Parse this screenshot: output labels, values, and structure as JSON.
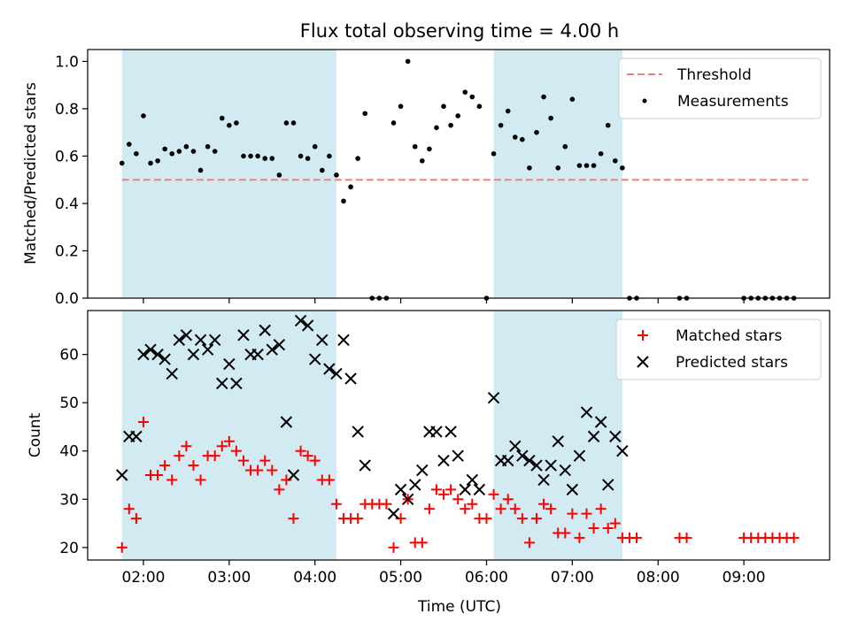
{
  "chart_data": [
    {
      "type": "scatter",
      "title": "Flux total observing time = 4.00 h",
      "xlabel": "",
      "ylabel": "Matched/Predicted stars",
      "xlim": [
        "01:21",
        "10:00"
      ],
      "ylim": [
        0,
        1.05
      ],
      "yticks": [
        0.0,
        0.2,
        0.4,
        0.6,
        0.8,
        1.0
      ],
      "ytick_labels": [
        "0.0",
        "0.2",
        "0.4",
        "0.6",
        "0.8",
        "1.0"
      ],
      "grid": false,
      "legend_position": "top-right",
      "highlight_bands": [
        [
          "01:45",
          "04:15"
        ],
        [
          "06:05",
          "07:35"
        ]
      ],
      "band_color": "#add8e6",
      "threshold": {
        "name": "Threshold",
        "y": 0.5,
        "x_range": [
          "01:45",
          "09:45"
        ],
        "color": "#f08080",
        "style": "dashed"
      },
      "series": [
        {
          "name": "Measurements",
          "color": "#000000",
          "marker": "dot",
          "x": [
            "01:45",
            "01:50",
            "01:55",
            "02:00",
            "02:05",
            "02:10",
            "02:15",
            "02:20",
            "02:25",
            "02:30",
            "02:35",
            "02:40",
            "02:45",
            "02:50",
            "02:55",
            "03:00",
            "03:05",
            "03:10",
            "03:15",
            "03:20",
            "03:25",
            "03:30",
            "03:35",
            "03:40",
            "03:45",
            "03:50",
            "03:55",
            "04:00",
            "04:05",
            "04:10",
            "04:15",
            "04:20",
            "04:25",
            "04:30",
            "04:35",
            "04:40",
            "04:45",
            "04:50",
            "04:55",
            "05:00",
            "05:05",
            "05:10",
            "05:15",
            "05:20",
            "05:25",
            "05:30",
            "05:35",
            "05:40",
            "05:45",
            "05:50",
            "05:55",
            "06:00",
            "06:05",
            "06:10",
            "06:15",
            "06:20",
            "06:25",
            "06:30",
            "06:35",
            "06:40",
            "06:45",
            "06:50",
            "06:55",
            "07:00",
            "07:05",
            "07:10",
            "07:15",
            "07:20",
            "07:25",
            "07:30",
            "07:35",
            "07:40",
            "07:45",
            "08:15",
            "08:20",
            "09:00",
            "09:05",
            "09:10",
            "09:15",
            "09:20",
            "09:25",
            "09:30",
            "09:35"
          ],
          "y": [
            0.57,
            0.65,
            0.61,
            0.77,
            0.57,
            0.58,
            0.63,
            0.61,
            0.62,
            0.64,
            0.62,
            0.54,
            0.64,
            0.62,
            0.76,
            0.73,
            0.74,
            0.6,
            0.6,
            0.6,
            0.59,
            0.59,
            0.52,
            0.74,
            0.74,
            0.6,
            0.59,
            0.64,
            0.54,
            0.6,
            0.52,
            0.41,
            0.47,
            0.59,
            0.78,
            0.0,
            0.0,
            0.0,
            0.74,
            0.81,
            1.0,
            0.64,
            0.58,
            0.63,
            0.72,
            0.81,
            0.73,
            0.77,
            0.87,
            0.85,
            0.81,
            0.0,
            0.61,
            0.73,
            0.79,
            0.68,
            0.67,
            0.55,
            0.7,
            0.85,
            0.76,
            0.55,
            0.64,
            0.84,
            0.56,
            0.56,
            0.56,
            0.61,
            0.73,
            0.58,
            0.55,
            0.0,
            0.0,
            0.0,
            0.0,
            0.0,
            0.0,
            0.0,
            0.0,
            0.0,
            0.0,
            0.0,
            0.0
          ]
        }
      ]
    },
    {
      "type": "scatter",
      "title": "",
      "xlabel": "Time (UTC)",
      "ylabel": "Count",
      "xlim": [
        "01:21",
        "10:00"
      ],
      "ylim": [
        17.4,
        69.1
      ],
      "xticks": [
        "02:00",
        "03:00",
        "04:00",
        "05:00",
        "06:00",
        "07:00",
        "08:00",
        "09:00"
      ],
      "yticks": [
        20,
        30,
        40,
        50,
        60
      ],
      "ytick_labels": [
        "20",
        "30",
        "40",
        "50",
        "60"
      ],
      "grid": false,
      "legend_position": "top-right",
      "highlight_bands": [
        [
          "01:45",
          "04:15"
        ],
        [
          "06:05",
          "07:35"
        ]
      ],
      "band_color": "#add8e6",
      "series": [
        {
          "name": "Matched stars",
          "color": "#ff0000",
          "marker": "plus",
          "x": [
            "01:45",
            "01:50",
            "01:55",
            "02:00",
            "02:05",
            "02:10",
            "02:15",
            "02:20",
            "02:25",
            "02:30",
            "02:35",
            "02:40",
            "02:45",
            "02:50",
            "02:55",
            "03:00",
            "03:05",
            "03:10",
            "03:15",
            "03:20",
            "03:25",
            "03:30",
            "03:35",
            "03:40",
            "03:45",
            "03:50",
            "03:55",
            "04:00",
            "04:05",
            "04:10",
            "04:15",
            "04:20",
            "04:25",
            "04:30",
            "04:35",
            "04:40",
            "04:45",
            "04:50",
            "04:55",
            "05:00",
            "05:05",
            "05:10",
            "05:15",
            "05:20",
            "05:25",
            "05:30",
            "05:35",
            "05:40",
            "05:45",
            "05:50",
            "05:55",
            "06:00",
            "06:05",
            "06:10",
            "06:15",
            "06:20",
            "06:25",
            "06:30",
            "06:35",
            "06:40",
            "06:45",
            "06:50",
            "06:55",
            "07:00",
            "07:05",
            "07:10",
            "07:15",
            "07:20",
            "07:25",
            "07:30",
            "07:35",
            "07:40",
            "07:45",
            "08:15",
            "08:20",
            "09:00",
            "09:05",
            "09:10",
            "09:15",
            "09:20",
            "09:25",
            "09:30",
            "09:35"
          ],
          "y": [
            20,
            28,
            26,
            46,
            35,
            35,
            37,
            34,
            39,
            41,
            37,
            34,
            39,
            39,
            41,
            42,
            40,
            38,
            36,
            36,
            38,
            36,
            32,
            34,
            26,
            40,
            39,
            38,
            34,
            34,
            29,
            26,
            26,
            26,
            29,
            29,
            29,
            29,
            20,
            26,
            30,
            21,
            21,
            28,
            32,
            31,
            32,
            30,
            28,
            29,
            26,
            26,
            31,
            28,
            30,
            28,
            26,
            21,
            26,
            29,
            28,
            23,
            23,
            27,
            22,
            27,
            24,
            28,
            24,
            25,
            22,
            22,
            22,
            22,
            22,
            22,
            22,
            22,
            22,
            22,
            22,
            22,
            22
          ]
        },
        {
          "name": "Predicted stars",
          "color": "#000000",
          "marker": "x",
          "x": [
            "01:45",
            "01:50",
            "01:55",
            "02:00",
            "02:05",
            "02:10",
            "02:15",
            "02:20",
            "02:25",
            "02:30",
            "02:35",
            "02:40",
            "02:45",
            "02:50",
            "02:55",
            "03:00",
            "03:05",
            "03:10",
            "03:15",
            "03:20",
            "03:25",
            "03:30",
            "03:35",
            "03:40",
            "03:45",
            "03:50",
            "03:55",
            "04:00",
            "04:05",
            "04:10",
            "04:15",
            "04:20",
            "04:25",
            "04:30",
            "04:35",
            "04:55",
            "05:00",
            "05:05",
            "05:10",
            "05:15",
            "05:20",
            "05:25",
            "05:30",
            "05:35",
            "05:40",
            "05:45",
            "05:50",
            "05:55",
            "06:05",
            "06:10",
            "06:15",
            "06:20",
            "06:25",
            "06:30",
            "06:35",
            "06:40",
            "06:45",
            "06:50",
            "06:55",
            "07:00",
            "07:05",
            "07:10",
            "07:15",
            "07:20",
            "07:25",
            "07:30",
            "07:35"
          ],
          "y": [
            35,
            43,
            43,
            60,
            61,
            60,
            59,
            56,
            63,
            64,
            60,
            63,
            61,
            63,
            54,
            58,
            54,
            64,
            60,
            60,
            65,
            61,
            62,
            46,
            35,
            67,
            66,
            59,
            63,
            57,
            56,
            63,
            55,
            44,
            37,
            27,
            32,
            30,
            33,
            36,
            44,
            44,
            38,
            44,
            39,
            32,
            34,
            32,
            51,
            38,
            38,
            41,
            39,
            38,
            37,
            34,
            37,
            42,
            36,
            32,
            39,
            48,
            43,
            46,
            33,
            43,
            40
          ]
        }
      ]
    }
  ]
}
